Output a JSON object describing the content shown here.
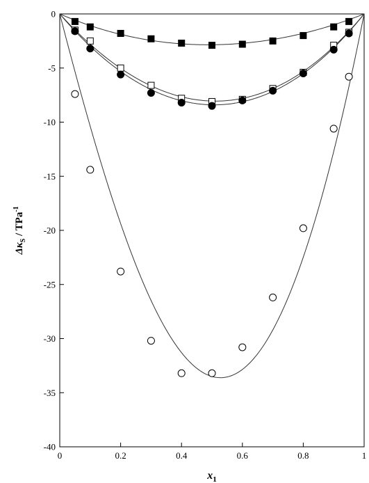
{
  "chart_data": {
    "type": "scatter",
    "title": "",
    "xlim": [
      0,
      1
    ],
    "ylim": [
      -40,
      0
    ],
    "x_ticks": [
      "0",
      "0.2",
      "0.4",
      "0.6",
      "0.8",
      "1"
    ],
    "y_ticks": [
      "0",
      "-5",
      "-10",
      "-15",
      "-20",
      "-25",
      "-30",
      "-35",
      "-40"
    ],
    "xlabel": {
      "main": "x",
      "sub": "1"
    },
    "ylabel": {
      "main": "Δκ",
      "sub": "S",
      "unit": " / TPa",
      "sup": "-1"
    },
    "grid": false,
    "legend": "none",
    "series": [
      {
        "marker": "filled-square",
        "x": [
          0.05,
          0.1,
          0.2,
          0.3,
          0.4,
          0.5,
          0.6,
          0.7,
          0.8,
          0.9,
          0.95
        ],
        "y": [
          -0.7,
          -1.2,
          -1.8,
          -2.3,
          -2.7,
          -2.9,
          -2.8,
          -2.5,
          -2.0,
          -1.2,
          -0.7
        ],
        "fit": [
          0,
          -11.4,
          0.5,
          -0.3
        ]
      },
      {
        "marker": "open-square",
        "x": [
          0.05,
          0.1,
          0.2,
          0.3,
          0.4,
          0.5,
          0.6,
          0.7,
          0.8,
          0.9,
          0.95
        ],
        "y": [
          -1.5,
          -2.5,
          -5.0,
          -6.6,
          -7.8,
          -8.1,
          -7.9,
          -6.9,
          -5.4,
          -2.9,
          -1.7
        ],
        "fit": [
          0,
          -32.2,
          -1.5,
          -0.3
        ]
      },
      {
        "marker": "filled-circle",
        "x": [
          0.05,
          0.1,
          0.2,
          0.3,
          0.4,
          0.5,
          0.6,
          0.7,
          0.8,
          0.9,
          0.95
        ],
        "y": [
          -1.6,
          -3.2,
          -5.6,
          -7.3,
          -8.2,
          -8.5,
          -8.0,
          -7.1,
          -5.5,
          -3.3,
          -1.8
        ],
        "fit": [
          0,
          -33.6,
          -1.0,
          -0.6
        ]
      },
      {
        "marker": "open-circle",
        "x": [
          0.05,
          0.1,
          0.2,
          0.3,
          0.4,
          0.5,
          0.6,
          0.7,
          0.8,
          0.9,
          0.95
        ],
        "y": [
          -7.4,
          -14.4,
          -23.8,
          -30.2,
          -33.2,
          -33.2,
          -30.8,
          -26.2,
          -19.8,
          -10.6,
          -5.8
        ],
        "fit": [
          0,
          -134.0,
          -16.2,
          8.9
        ]
      }
    ]
  }
}
